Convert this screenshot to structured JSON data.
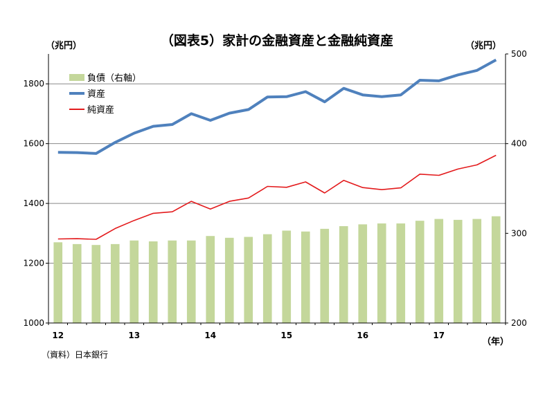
{
  "title": "（図表5）家計の金融資産と金融純資産",
  "left_unit": "（兆円）",
  "right_unit": "（兆円）",
  "x_unit": "（年）",
  "source": "（資料）日本銀行",
  "legend": {
    "bar": "負債（右軸）",
    "asset": "資産",
    "net": "純資産"
  },
  "colors": {
    "bar": "#c4d79b",
    "asset": "#4f81bd",
    "net": "#e31a1c",
    "grid": "#888888"
  },
  "chart_data": {
    "type": "bar+line",
    "x": [
      "12Q1",
      "12Q2",
      "12Q3",
      "12Q4",
      "13Q1",
      "13Q2",
      "13Q3",
      "13Q4",
      "14Q1",
      "14Q2",
      "14Q3",
      "14Q4",
      "15Q1",
      "15Q2",
      "15Q3",
      "15Q4",
      "16Q1",
      "16Q2",
      "16Q3",
      "16Q4",
      "17Q1",
      "17Q2",
      "17Q3",
      "17Q4"
    ],
    "x_tick_labels": [
      "12",
      "13",
      "14",
      "15",
      "16",
      "17"
    ],
    "x_tick_indices": [
      0,
      4,
      8,
      12,
      16,
      20
    ],
    "y_left": {
      "min": 1000,
      "max": 1900,
      "ticks": [
        1000,
        1200,
        1400,
        1600,
        1800
      ]
    },
    "y_right": {
      "min": 200,
      "max": 500,
      "ticks": [
        200,
        300,
        400,
        500
      ]
    },
    "series": [
      {
        "name": "負債（右軸）",
        "type": "bar",
        "axis": "right",
        "values": [
          290,
          288,
          287,
          288,
          292,
          291,
          292,
          292,
          297,
          295,
          296,
          299,
          303,
          302,
          305,
          308,
          310,
          311,
          311,
          314,
          316,
          315,
          316,
          319
        ]
      },
      {
        "name": "資産",
        "type": "line",
        "axis": "left",
        "values": [
          1571,
          1570,
          1567,
          1604,
          1635,
          1658,
          1664,
          1700,
          1678,
          1702,
          1714,
          1756,
          1757,
          1774,
          1740,
          1785,
          1763,
          1757,
          1763,
          1812,
          1810,
          1830,
          1845,
          1880
        ]
      },
      {
        "name": "純資産",
        "type": "line",
        "axis": "left",
        "values": [
          1281,
          1282,
          1280,
          1316,
          1343,
          1367,
          1372,
          1407,
          1381,
          1407,
          1418,
          1457,
          1454,
          1472,
          1435,
          1477,
          1453,
          1446,
          1452,
          1498,
          1494,
          1515,
          1529,
          1561
        ]
      }
    ]
  }
}
